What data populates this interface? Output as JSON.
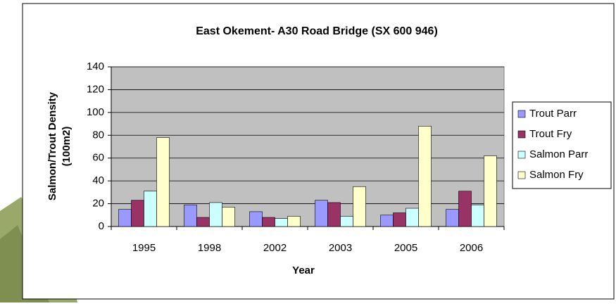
{
  "chart_data": {
    "type": "bar",
    "title": "East Okement- A30 Road Bridge (SX 600 946)",
    "x_label": "Year",
    "y_label": [
      "Salmon/Trout Density",
      "(100m2)"
    ],
    "categories": [
      "1995",
      "1998",
      "2002",
      "2003",
      "2005",
      "2006"
    ],
    "series": [
      {
        "name": "Trout Parr",
        "color": "#9999ff",
        "values": [
          15,
          19,
          13,
          23,
          10,
          15
        ]
      },
      {
        "name": "Trout Fry",
        "color": "#993366",
        "values": [
          23,
          8,
          8,
          21,
          12,
          31
        ]
      },
      {
        "name": "Salmon Parr",
        "color": "#ccffff",
        "values": [
          31,
          21,
          7,
          9,
          16,
          19
        ]
      },
      {
        "name": "Salmon Fry",
        "color": "#ffffcc",
        "values": [
          78,
          17,
          9,
          35,
          88,
          62
        ]
      }
    ],
    "ylim": [
      0,
      140
    ],
    "yticks": [
      0,
      20,
      40,
      60,
      80,
      100,
      120,
      140
    ],
    "grid": true,
    "legend": "right"
  }
}
